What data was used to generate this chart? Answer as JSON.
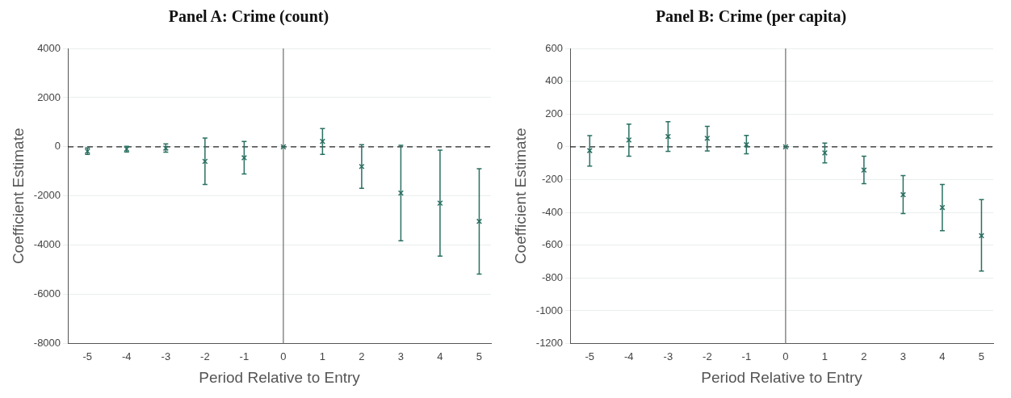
{
  "chart_data": [
    {
      "type": "scatter",
      "title": "Panel A: Crime (count)",
      "xlabel": "Period Relative to Entry",
      "ylabel": "Coefficient Estimate",
      "x": [
        -5,
        -4,
        -3,
        -2,
        -1,
        0,
        1,
        2,
        3,
        4,
        5
      ],
      "series": [
        {
          "color": "#2a7062",
          "values": [
            -180,
            -90,
            -55,
            -590,
            -445,
            0,
            220,
            -800,
            -1880,
            -2290,
            -3030
          ],
          "errors": [
            [
              -311,
              -44
            ],
            [
              -210,
              20
            ],
            [
              -220,
              120
            ],
            [
              -1530,
              355
            ],
            [
              -1100,
              220
            ],
            null,
            [
              -310,
              745
            ],
            [
              -1690,
              90
            ],
            [
              -3820,
              65
            ],
            [
              -4440,
              -135
            ],
            [
              -5170,
              -890
            ]
          ]
        }
      ],
      "xlim": [
        -5.5,
        5.3
      ],
      "xticks": [
        -5,
        -4,
        -3,
        -2,
        -1,
        0,
        1,
        2,
        3,
        4,
        5
      ],
      "ylim": [
        -8000,
        4000
      ],
      "yticks": [
        -8000,
        -6000,
        -4000,
        -2000,
        0,
        2000,
        4000
      ],
      "ref_lines": [
        {
          "axis": "x",
          "value": 0,
          "color": "#777777",
          "line_style": "solid"
        },
        {
          "axis": "y",
          "value": 0,
          "color": "#222222",
          "line_style": "dashed"
        }
      ],
      "grid": "y",
      "legend": false,
      "marker": "cross"
    },
    {
      "type": "scatter",
      "title": "Panel B: Crime (per capita)",
      "xlabel": "Period Relative to Entry",
      "ylabel": "Coefficient Estimate",
      "x": [
        -5,
        -4,
        -3,
        -2,
        -1,
        0,
        1,
        2,
        3,
        4,
        5
      ],
      "series": [
        {
          "color": "#2a7062",
          "values": [
            -23,
            42,
            63,
            52,
            13,
            0,
            -37,
            -142,
            -292,
            -370,
            -542
          ],
          "errors": [
            [
              -118,
              68
            ],
            [
              -57,
              138
            ],
            [
              -28,
              153
            ],
            [
              -25,
              125
            ],
            [
              -43,
              70
            ],
            null,
            [
              -98,
              23
            ],
            [
              -225,
              -57
            ],
            [
              -407,
              -175
            ],
            [
              -512,
              -230
            ],
            [
              -758,
              -322
            ]
          ]
        }
      ],
      "xlim": [
        -5.5,
        5.3
      ],
      "xticks": [
        -5,
        -4,
        -3,
        -2,
        -1,
        0,
        1,
        2,
        3,
        4,
        5
      ],
      "ylim": [
        -1200,
        600
      ],
      "yticks": [
        -1200,
        -1000,
        -800,
        -600,
        -400,
        -200,
        0,
        200,
        400,
        600
      ],
      "ref_lines": [
        {
          "axis": "x",
          "value": 0,
          "color": "#777777",
          "line_style": "solid"
        },
        {
          "axis": "y",
          "value": 0,
          "color": "#222222",
          "line_style": "dashed"
        }
      ],
      "grid": "y",
      "legend": false,
      "marker": "cross"
    }
  ]
}
